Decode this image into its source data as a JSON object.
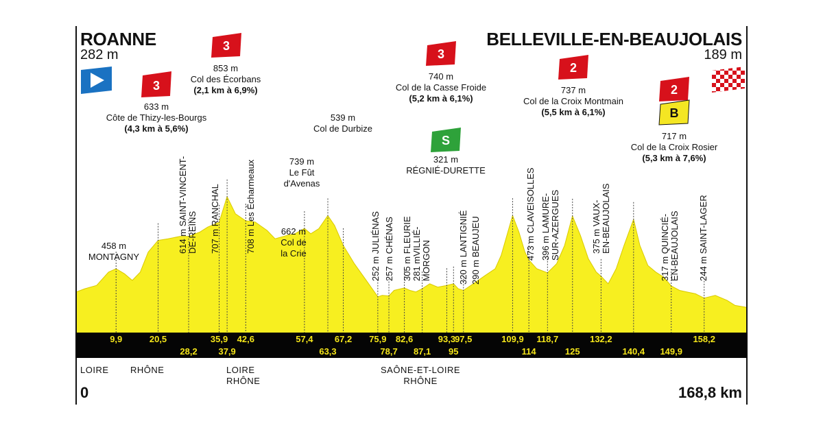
{
  "start": {
    "city": "ROANNE",
    "altitude": "282 m",
    "km": "0"
  },
  "finish": {
    "city": "BELLEVILLE-EN-BEAUJOLAIS",
    "altitude": "189 m",
    "km": "168,8 km"
  },
  "colors": {
    "profile": "#f7ef20",
    "band": "#050505",
    "band_text": "#f5e61a",
    "cat3": "#d7111b",
    "sprint": "#2ea23a",
    "bonus": "#f4e623"
  },
  "icons": {
    "start": "start-flag-icon",
    "finish": "checkered-flag-icon"
  },
  "climbs": [
    {
      "cat": "3",
      "name": "Côte de Thizy-les-Bourgs",
      "altitude": "633 m",
      "detail": "(4,3 km à 5,6%)"
    },
    {
      "cat": "3",
      "name": "Col des Écorbans",
      "altitude": "853 m",
      "detail": "(2,1 km à 6,9%)"
    },
    {
      "cat": "3",
      "name": "Col de la Casse Froide",
      "altitude": "740 m",
      "detail": "(5,2 km à 6,1%)"
    },
    {
      "cat": "2",
      "name": "Col de la Croix Montmain",
      "altitude": "737 m",
      "detail": "(5,5 km à 6,1%)"
    },
    {
      "cat": "2",
      "bonus": "B",
      "name": "Col de la Croix Rosier",
      "altitude": "717 m",
      "detail": "(5,3 km à 7,6%)"
    }
  ],
  "sprint": {
    "badge": "S",
    "name": "RÉGNIÉ-DURETTE",
    "altitude": "321 m"
  },
  "horizontal_places": [
    {
      "altitude": "458 m",
      "name": "MONTAGNY"
    },
    {
      "altitude": "539 m",
      "name": "Col de Durbize"
    },
    {
      "altitude": "739 m",
      "name1": "Le Fût",
      "name2": "d'Avenas"
    },
    {
      "altitude": "662 m",
      "name1": "Col de",
      "name2": "la Crie"
    }
  ],
  "vertical_places": [
    {
      "l1": "614 m SAINT-VINCENT-",
      "l2": "DE-REINS"
    },
    {
      "l1": "707 m RANCHAL"
    },
    {
      "l1": "708 m Les Écharmeaux"
    },
    {
      "l1": "252 m JULIÉNAS"
    },
    {
      "l1": "257 m CHÉNAS"
    },
    {
      "l1": "305 m FLEURIE"
    },
    {
      "l1": "281 mVILLIÉ-",
      "l2": "MORGON"
    },
    {
      "l1": "320 m LANTIGNIÉ"
    },
    {
      "l1": "290 m BEAUJEU"
    },
    {
      "l1": "473 m CLAVEISOLLES"
    },
    {
      "l1": "396 m LAMURE-",
      "l2": "SUR-AZERGUES"
    },
    {
      "l1": "375 m VAUX-",
      "l2": "EN-BEAUJOLAIS"
    },
    {
      "l1": "317 m QUINCIÉ-",
      "l2": "EN-BEAUJOLAIS"
    },
    {
      "l1": "244 m SAINT-LAGER"
    }
  ],
  "regions": [
    {
      "l1": "LOIRE"
    },
    {
      "l1": "RHÔNE"
    },
    {
      "l1": "LOIRE",
      "l2": "RHÔNE"
    },
    {
      "l1": "SAÔNE-ET-LOIRE",
      "l2": "RHÔNE"
    }
  ],
  "chart_data": {
    "type": "area",
    "xlabel": "",
    "ylabel": "",
    "xlim": [
      0,
      168.8
    ],
    "x_unit": "km",
    "y_unit": "m",
    "series": [
      {
        "x": [
          0,
          2,
          5,
          8,
          9.9,
          12,
          14,
          16,
          18,
          20.5,
          23,
          26,
          28.2,
          31,
          33,
          35.9,
          37.9,
          40,
          42.6,
          45,
          48,
          50,
          53,
          55,
          57.4,
          59,
          61,
          63.3,
          65,
          67.2,
          70,
          73,
          75.9,
          77,
          78.7,
          80,
          82.6,
          84,
          85.5,
          87.1,
          89,
          91,
          93.3,
          95,
          96.2,
          97.5,
          100,
          103,
          105.5,
          107,
          109.9,
          111.5,
          113,
          114,
          116,
          118.7,
          121,
          123,
          125,
          127,
          129,
          131,
          132.2,
          134,
          136,
          138,
          140.4,
          142,
          144,
          146,
          148,
          149.9,
          152,
          154,
          156,
          158.2,
          161,
          164,
          166,
          168.8
        ],
        "y": [
          282,
          300,
          320,
          400,
          420,
          390,
          350,
          400,
          520,
          590,
          600,
          614,
          614,
          640,
          670,
          700,
          853,
          750,
          708,
          700,
          650,
          600,
          620,
          630,
          662,
          630,
          660,
          739,
          680,
          560,
          450,
          350,
          252,
          260,
          257,
          290,
          305,
          290,
          281,
          300,
          330,
          310,
          320,
          330,
          300,
          290,
          330,
          380,
          420,
          500,
          740,
          640,
          520,
          473,
          420,
          396,
          450,
          560,
          737,
          620,
          480,
          400,
          375,
          330,
          420,
          560,
          717,
          560,
          440,
          400,
          370,
          317,
          290,
          280,
          270,
          244,
          260,
          230,
          200,
          189
        ]
      }
    ],
    "km_markers_top": [
      "9,9",
      "20,5",
      "35,9",
      "42,6",
      "57,4",
      "67,2",
      "75,9",
      "82,6",
      "93,3",
      "97,5",
      "109,9",
      "118,7",
      "132,2",
      "158,2"
    ],
    "km_markers_bottom": [
      "28,2",
      "37,9",
      "63,3",
      "78,7",
      "87,1",
      "95",
      "114",
      "125",
      "140,4",
      "149,9"
    ]
  }
}
